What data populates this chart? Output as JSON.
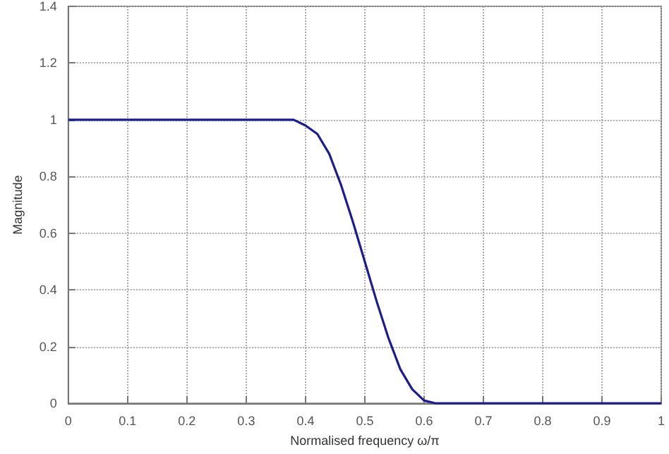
{
  "chart_data": {
    "type": "line",
    "xlabel": "Normalised frequency ω/π",
    "ylabel": "Magnitude",
    "x": [
      0,
      0.05,
      0.1,
      0.15,
      0.2,
      0.25,
      0.3,
      0.35,
      0.38,
      0.4,
      0.42,
      0.44,
      0.46,
      0.48,
      0.5,
      0.52,
      0.54,
      0.56,
      0.58,
      0.6,
      0.62,
      0.7,
      0.8,
      0.9,
      1
    ],
    "series": [
      {
        "color": "#1c1c8e",
        "values": [
          1,
          1,
          1,
          1,
          1,
          1,
          1,
          1,
          1,
          0.98,
          0.95,
          0.88,
          0.77,
          0.64,
          0.5,
          0.36,
          0.23,
          0.12,
          0.05,
          0.01,
          0,
          0,
          0,
          0,
          0
        ]
      }
    ],
    "xlim": [
      0,
      1
    ],
    "xticks": [
      0,
      0.1,
      0.2,
      0.3,
      0.4,
      0.5,
      0.6,
      0.7,
      0.8,
      0.9,
      1
    ],
    "ylim": [
      0,
      1.4
    ],
    "yticks": [
      0,
      0.2,
      0.4,
      0.6,
      0.8,
      1,
      1.2,
      1.4
    ],
    "grid": true,
    "line_style": "solid",
    "marker": "none"
  }
}
